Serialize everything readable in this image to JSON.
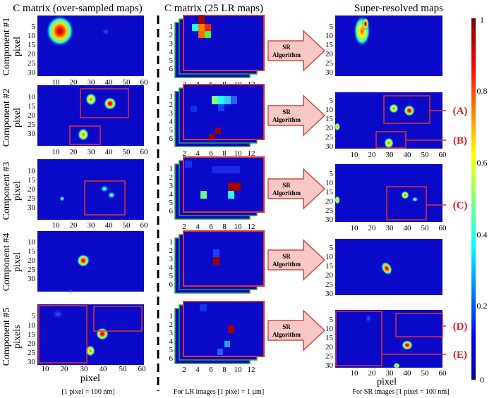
{
  "headers": {
    "left": "C matrix (over-sampled maps)",
    "middle": "C matrix (25 LR maps)",
    "right": "Super-resolved maps"
  },
  "components": [
    "Component #1",
    "Component #2",
    "Component #3",
    "Component #4",
    "Component #5"
  ],
  "left_axis": {
    "ylabels": [
      "pixel",
      "pixel",
      "pixel",
      "pixel",
      "pixels"
    ],
    "yticks": [
      "5",
      "10",
      "15",
      "20",
      "25",
      "30"
    ],
    "xticks": [
      "10",
      "20",
      "30",
      "40",
      "50",
      "60"
    ],
    "xlabel": "pixel"
  },
  "lr_axis": {
    "yticks": [
      "1",
      "2",
      "3",
      "4",
      "5",
      "6"
    ],
    "xticks": [
      "2",
      "4",
      "6",
      "8",
      "10",
      "12"
    ]
  },
  "right_axis": {
    "yticks": [
      "5",
      "10",
      "15",
      "20",
      "25",
      "30"
    ],
    "xticks": [
      "10",
      "20",
      "30",
      "40",
      "50",
      "60"
    ],
    "xlabel": "pixel"
  },
  "sr_label": [
    "SR",
    "Algorithm"
  ],
  "callouts": [
    "(A)",
    "(B)",
    "(C)",
    "(D)",
    "(E)"
  ],
  "captions": {
    "left": "[1 pixel = 100 nm]",
    "middle": "For LR images [1 pixel = 1 µm]",
    "right": "For SR images [1 pixel = 100 nm]"
  },
  "colorbar": {
    "ticks": [
      "0",
      "0.2",
      "0.4",
      "0.6",
      "0.8",
      "1"
    ],
    "colors": [
      "#00008f",
      "#0000ff",
      "#00ffff",
      "#ffff00",
      "#ff0000",
      "#800000"
    ]
  },
  "colors": {
    "map_background": "#0a0ac8",
    "box": "#e03030",
    "arrow_fill": "#f7c8c4",
    "arrow_stroke": "#d04840",
    "stack_edge": "#30a040",
    "callout": "#e02020"
  }
}
